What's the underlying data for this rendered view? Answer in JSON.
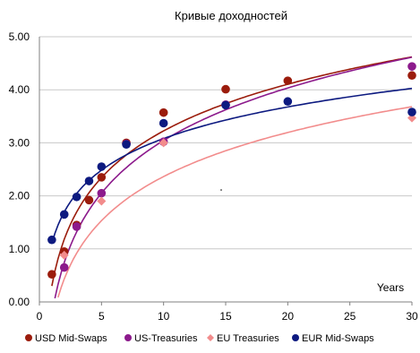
{
  "chart_data": {
    "type": "scatter",
    "title": "Кривые доходностей",
    "xlabel": "Years",
    "ylabel": "",
    "xlim": [
      0,
      30
    ],
    "ylim": [
      0,
      5
    ],
    "xticks": [
      "0",
      "5",
      "10",
      "15",
      "20",
      "25",
      "30"
    ],
    "yticks": [
      "0.00",
      "1.00",
      "2.00",
      "3.00",
      "4.00",
      "5.00"
    ],
    "grid": "horizontal",
    "legend_position": "bottom",
    "series": [
      {
        "name": "USD Mid-Swaps",
        "color": "#9b1c0c",
        "marker": "circle",
        "x": [
          1,
          2,
          3,
          4,
          5,
          7,
          10,
          15,
          20,
          30
        ],
        "y": [
          0.52,
          0.95,
          1.45,
          1.92,
          2.35,
          3.0,
          3.57,
          4.01,
          4.17,
          4.27
        ],
        "trend": {
          "type": "log",
          "a": 0.3,
          "b": 1.27
        }
      },
      {
        "name": "US-Treasuries",
        "color": "#8c1a8c",
        "marker": "circle",
        "x": [
          2,
          3,
          5,
          7,
          10,
          15,
          30
        ],
        "y": [
          0.65,
          1.42,
          2.05,
          2.98,
          3.02,
          3.72,
          4.44
        ],
        "trend": {
          "type": "log",
          "a": -0.25,
          "b": 1.43
        }
      },
      {
        "name": "EU Treasuries",
        "color": "#f28c8c",
        "marker": "diamond",
        "x": [
          2,
          5,
          10,
          30
        ],
        "y": [
          0.88,
          1.9,
          3.0,
          3.47
        ],
        "trend": {
          "type": "log",
          "a": -0.4,
          "b": 1.2
        }
      },
      {
        "name": "EUR Mid-Swaps",
        "color": "#0d1a80",
        "marker": "circle",
        "x": [
          1,
          2,
          3,
          4,
          5,
          7,
          10,
          15,
          20,
          30
        ],
        "y": [
          1.17,
          1.65,
          1.98,
          2.28,
          2.55,
          2.97,
          3.37,
          3.71,
          3.78,
          3.58
        ],
        "trend": {
          "type": "log",
          "a": 1.1,
          "b": 0.86
        }
      }
    ]
  }
}
